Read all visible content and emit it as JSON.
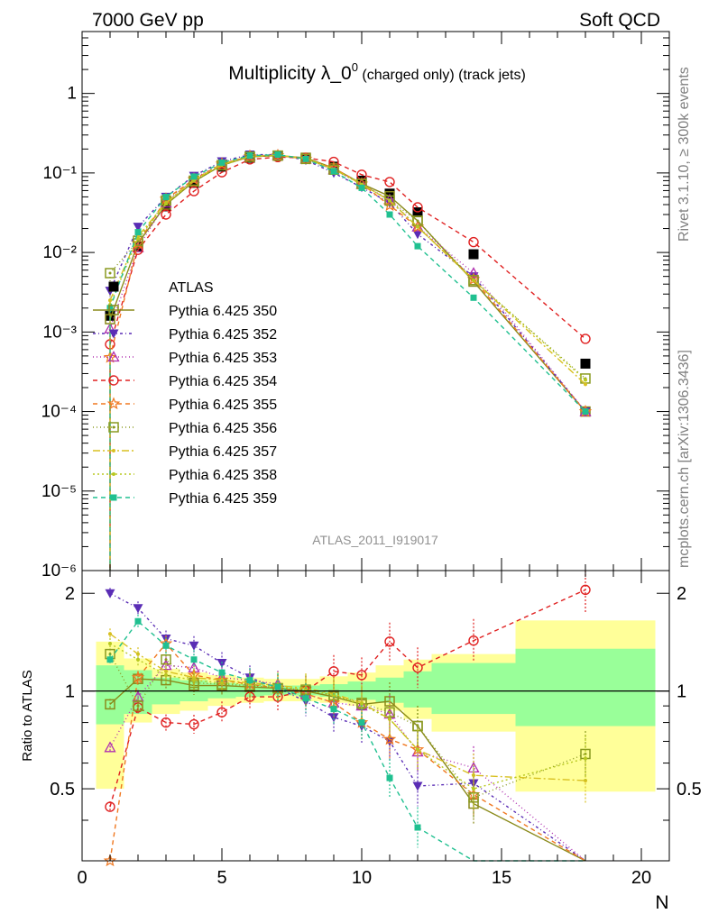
{
  "header": {
    "left": "7000 GeV pp",
    "right": "Soft QCD"
  },
  "side_labels": {
    "upper": "Rivet 3.1.10, ≥ 300k events",
    "lower": "mcplots.cern.ch [arXiv:1306.3436]"
  },
  "chart_data": {
    "type": "line",
    "title": "Multiplicity λ_0⁰ (charged only) (track jets)",
    "title_main": "Multiplicity λ_0",
    "title_sup": "0",
    "title_rest": " (charged only) (track jets)",
    "analysis_tag": "ATLAS_2011_I919017",
    "xlabel": "N",
    "ylabel_ratio": "Ratio to ATLAS",
    "xlim": [
      0,
      21
    ],
    "ylim": [
      1e-06,
      6
    ],
    "yscale": "log",
    "ratio_ylim": [
      0.3,
      2.35
    ],
    "ratio_yscale": "log",
    "x_ticks": [
      "0",
      "5",
      "10",
      "15",
      "20"
    ],
    "y_ticks": [
      "10⁻⁶",
      "10⁻⁵",
      "10⁻⁴",
      "10⁻³",
      "10⁻²",
      "10⁻¹",
      "1"
    ],
    "ratio_ticks": [
      "0.5",
      "1",
      "2"
    ],
    "legend_position": "left",
    "x": [
      1,
      2,
      3,
      4,
      5,
      6,
      7,
      8,
      9,
      10,
      11,
      12,
      14,
      18
    ],
    "bands": {
      "edges": [
        0.5,
        1.5,
        2.5,
        3.5,
        4.5,
        5.5,
        6.5,
        7.5,
        8.5,
        9.5,
        10.5,
        11.5,
        12.5,
        15.5,
        20.5
      ],
      "inner_up": [
        1.2,
        1.16,
        1.1,
        1.08,
        1.06,
        1.05,
        1.04,
        1.04,
        1.05,
        1.07,
        1.1,
        1.15,
        1.22,
        1.35
      ],
      "inner_down": [
        0.79,
        0.85,
        0.91,
        0.93,
        0.95,
        0.96,
        0.97,
        0.97,
        0.96,
        0.94,
        0.92,
        0.89,
        0.85,
        0.78
      ],
      "outer_up": [
        1.42,
        1.26,
        1.17,
        1.14,
        1.12,
        1.1,
        1.09,
        1.09,
        1.11,
        1.14,
        1.2,
        1.25,
        1.3,
        1.65
      ],
      "outer_down": [
        0.5,
        0.8,
        0.85,
        0.87,
        0.9,
        0.92,
        0.93,
        0.93,
        0.92,
        0.9,
        0.87,
        0.82,
        0.75,
        0.49
      ]
    },
    "series": [
      {
        "name": "ATLAS",
        "color": "#000000",
        "marker": "square-filled",
        "dash": "none",
        "values": [
          0.0016,
          0.012,
          0.038,
          0.075,
          0.12,
          0.155,
          0.165,
          0.155,
          0.12,
          0.08,
          0.055,
          0.032,
          0.0095,
          0.0004
        ]
      },
      {
        "name": "Pythia 6.425 350",
        "color": "#8a8a1a",
        "marker": "square-open",
        "dash": "solid",
        "values": [
          0.00145,
          0.013,
          0.04,
          0.078,
          0.125,
          0.16,
          0.165,
          0.155,
          0.115,
          0.073,
          0.051,
          0.025,
          0.0043,
          0.0001
        ]
      },
      {
        "name": "Pythia 6.425 352",
        "color": "#5a2db5",
        "marker": "triangle-down-filled",
        "dash": "3,3,1,3",
        "values": [
          0.0033,
          0.021,
          0.05,
          0.092,
          0.14,
          0.17,
          0.17,
          0.145,
          0.1,
          0.066,
          0.042,
          0.017,
          0.005,
          0.0001
        ]
      },
      {
        "name": "Pythia 6.425 353",
        "color": "#b030b0",
        "marker": "triangle-up-open",
        "dash": "1,3",
        "values": [
          0.0011,
          0.0115,
          0.042,
          0.086,
          0.13,
          0.165,
          0.167,
          0.15,
          0.11,
          0.072,
          0.046,
          0.021,
          0.0055,
          0.0001
        ]
      },
      {
        "name": "Pythia 6.425 354",
        "color": "#e02020",
        "marker": "circle-open",
        "dash": "5,4",
        "values": [
          0.0007,
          0.0108,
          0.03,
          0.059,
          0.102,
          0.148,
          0.158,
          0.155,
          0.138,
          0.095,
          0.077,
          0.037,
          0.0135,
          0.00082
        ]
      },
      {
        "name": "Pythia 6.425 355",
        "color": "#f07820",
        "marker": "star-open",
        "dash": "5,4",
        "values": [
          0.00048,
          0.013,
          0.047,
          0.083,
          0.13,
          0.162,
          0.166,
          0.15,
          0.115,
          0.073,
          0.039,
          0.021,
          0.0046,
          0.0001
        ]
      },
      {
        "name": "Pythia 6.425 356",
        "color": "#8a9a20",
        "marker": "square-open-dot",
        "dash": "1,3",
        "values": [
          0.0055,
          0.014,
          0.045,
          0.08,
          0.125,
          0.16,
          0.165,
          0.15,
          0.11,
          0.073,
          0.045,
          0.025,
          0.0045,
          0.00026
        ]
      },
      {
        "name": "Pythia 6.425 357",
        "color": "#d8c020",
        "marker": "dot",
        "dash": "8,3,2,3",
        "values": [
          0.0025,
          0.016,
          0.042,
          0.082,
          0.128,
          0.162,
          0.168,
          0.152,
          0.112,
          0.072,
          0.045,
          0.021,
          0.0045,
          0.00022
        ]
      },
      {
        "name": "Pythia 6.425 358",
        "color": "#b8c820",
        "marker": "dot",
        "dash": "2,3",
        "values": [
          0.0022,
          0.015,
          0.041,
          0.08,
          0.126,
          0.16,
          0.166,
          0.152,
          0.112,
          0.072,
          0.045,
          0.021,
          0.0045,
          0.00025
        ]
      },
      {
        "name": "Pythia 6.425 359",
        "color": "#20c090",
        "marker": "square-filled-small",
        "dash": "5,4",
        "values": [
          0.002,
          0.018,
          0.05,
          0.09,
          0.135,
          0.165,
          0.17,
          0.15,
          0.105,
          0.065,
          0.03,
          0.012,
          0.0027,
          0.0001
        ]
      }
    ],
    "ratio_series": [
      {
        "name": "Pythia 6.425 350",
        "values": [
          0.91,
          1.09,
          1.08,
          1.04,
          1.04,
          1.03,
          1.02,
          1.0,
          0.96,
          0.91,
          0.93,
          0.78,
          0.45,
          0.25
        ]
      },
      {
        "name": "Pythia 6.425 352",
        "values": [
          2.0,
          1.8,
          1.45,
          1.38,
          1.22,
          1.1,
          1.02,
          0.93,
          0.83,
          0.78,
          0.7,
          0.51,
          0.52,
          0.25
        ]
      },
      {
        "name": "Pythia 6.425 353",
        "values": [
          0.67,
          0.96,
          1.2,
          1.18,
          1.1,
          1.08,
          1.05,
          0.98,
          0.92,
          0.9,
          0.85,
          0.65,
          0.58,
          0.25
        ]
      },
      {
        "name": "Pythia 6.425 354",
        "values": [
          0.44,
          0.89,
          0.8,
          0.79,
          0.86,
          0.96,
          0.96,
          1.0,
          1.15,
          1.12,
          1.42,
          1.18,
          1.43,
          2.05
        ]
      },
      {
        "name": "Pythia 6.425 355",
        "values": [
          0.3,
          1.1,
          1.4,
          1.12,
          1.08,
          1.05,
          1.02,
          0.98,
          0.92,
          0.8,
          0.71,
          0.66,
          0.48,
          0.25
        ]
      },
      {
        "name": "Pythia 6.425 356",
        "values": [
          1.3,
          0.9,
          1.25,
          1.06,
          1.05,
          1.04,
          1.02,
          1.01,
          0.97,
          0.92,
          0.86,
          0.78,
          0.47,
          0.64
        ]
      },
      {
        "name": "Pythia 6.425 357",
        "values": [
          1.5,
          1.3,
          1.15,
          1.1,
          1.08,
          1.06,
          1.04,
          1.02,
          0.98,
          0.92,
          0.82,
          0.66,
          0.55,
          0.53
        ]
      },
      {
        "name": "Pythia 6.425 358",
        "values": [
          1.4,
          1.25,
          1.12,
          1.08,
          1.06,
          1.05,
          1.03,
          1.01,
          0.97,
          0.91,
          0.82,
          0.66,
          0.5,
          0.62
        ]
      },
      {
        "name": "Pythia 6.425 359",
        "values": [
          1.25,
          1.64,
          1.38,
          1.25,
          1.14,
          1.08,
          1.03,
          0.95,
          0.88,
          0.8,
          0.54,
          0.38,
          0.28,
          0.25
        ]
      }
    ]
  }
}
